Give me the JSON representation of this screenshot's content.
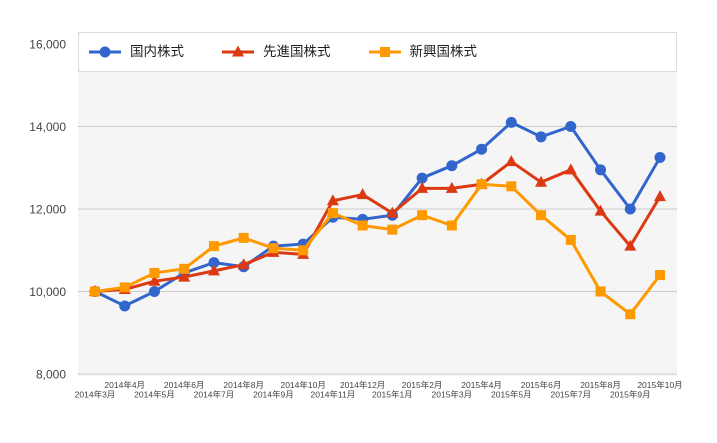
{
  "chart_data": {
    "type": "line",
    "title": "",
    "xlabel": "",
    "ylabel": "",
    "categories": [
      "2014年3月",
      "2014年4月",
      "2014年5月",
      "2014年6月",
      "2014年7月",
      "2014年8月",
      "2014年9月",
      "2014年10月",
      "2014年11月",
      "2014年12月",
      "2015年1月",
      "2015年2月",
      "2015年3月",
      "2015年4月",
      "2015年5月",
      "2015年6月",
      "2015年7月",
      "2015年8月",
      "2015年9月",
      "2015年10月"
    ],
    "series": [
      {
        "name": "国内株式",
        "color": "#3366CC",
        "marker": "circle",
        "values": [
          10000,
          9650,
          10000,
          10450,
          10700,
          10600,
          11100,
          11150,
          11800,
          11750,
          11850,
          12750,
          13050,
          13450,
          14100,
          13750,
          14000,
          12950,
          12000,
          13250
        ]
      },
      {
        "name": "先進国株式",
        "color": "#DC3912",
        "marker": "triangle",
        "values": [
          10000,
          10050,
          10250,
          10350,
          10500,
          10650,
          10950,
          10900,
          12200,
          12350,
          11900,
          12500,
          12500,
          12600,
          13150,
          12650,
          12950,
          11950,
          11100,
          12300
        ]
      },
      {
        "name": "新興国株式",
        "color": "#FF9900",
        "marker": "square",
        "values": [
          10000,
          10100,
          10450,
          10550,
          11100,
          11300,
          11050,
          11000,
          11900,
          11600,
          11500,
          11850,
          11600,
          12600,
          12550,
          11850,
          11250,
          10000,
          9450,
          10400
        ]
      }
    ],
    "ylim": [
      8000,
      16000
    ],
    "yticks": [
      8000,
      10000,
      12000,
      14000,
      16000
    ],
    "ytick_labels": [
      "8,000",
      "10,000",
      "12,000",
      "14,000",
      "16,000"
    ],
    "grid": true,
    "legend_position": "top"
  },
  "chart_style": {
    "plot_background": "#f5f5f5",
    "gridline_color": "#cccccc",
    "axis_text_color": "#444444",
    "legend_border_color": "#dadada",
    "legend_background": "#ffffff"
  }
}
